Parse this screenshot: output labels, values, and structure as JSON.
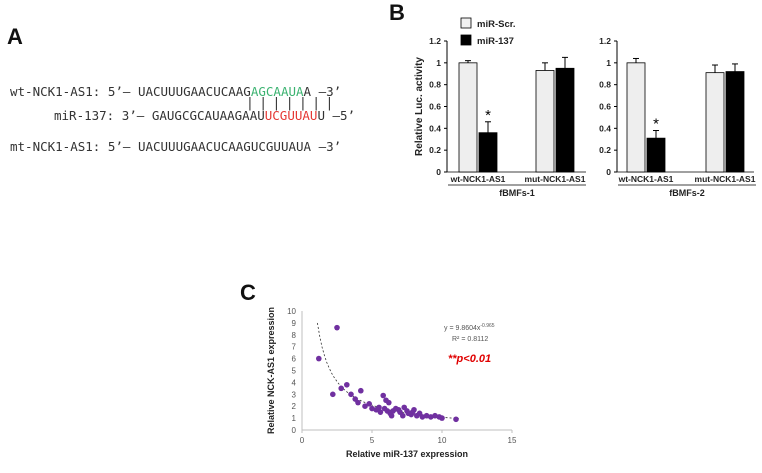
{
  "panels": {
    "a": "A",
    "b": "B",
    "c": "C"
  },
  "panel_a": {
    "wt": {
      "label": "wt-NCK1-AS1:",
      "five": "5’–",
      "seq_pre": "UACUUUGAACUCAAG",
      "seq_hl": "AGCAAUA",
      "seq_post": "A",
      "three": "–3’"
    },
    "pairing": "| | | | | | |",
    "mir": {
      "label": "miR-137:",
      "three": "3’–",
      "seq_pre": "GAUGCGCAUAAGAAU",
      "seq_hl": "UCGUUAU",
      "seq_post": "U",
      "five": "–5’"
    },
    "mt": {
      "label": "mt-NCK1-AS1:",
      "five": "5’–",
      "seq": "UACUUUGAACUCAAGUCGUUAUA",
      "three": "–3’"
    }
  },
  "legend": {
    "scr": "miR-Scr.",
    "mir": "miR-137"
  },
  "chart_data": [
    {
      "type": "bar",
      "title": "fBMFs-1",
      "ylabel": "Relative Luc. activity",
      "ylim": [
        0,
        1.2
      ],
      "yticks": [
        "0",
        "0.2",
        "0.4",
        "0.6",
        "0.8",
        "1",
        "1.2"
      ],
      "categories": [
        "wt-NCK1-AS1",
        "mut-NCK1-AS1"
      ],
      "series": [
        {
          "name": "miR-Scr.",
          "values": [
            1.0,
            0.93
          ],
          "errors": [
            0.02,
            0.07
          ],
          "color": "#eeeeee"
        },
        {
          "name": "miR-137",
          "values": [
            0.36,
            0.95
          ],
          "errors": [
            0.1,
            0.1
          ],
          "color": "#000000"
        }
      ],
      "significance": "*"
    },
    {
      "type": "bar",
      "title": "fBMFs-2",
      "ylabel": "",
      "ylim": [
        0,
        1.2
      ],
      "yticks": [
        "0",
        "0.2",
        "0.4",
        "0.6",
        "0.8",
        "1",
        "1.2"
      ],
      "categories": [
        "wt-NCK1-AS1",
        "mut-NCK1-AS1"
      ],
      "series": [
        {
          "name": "miR-Scr.",
          "values": [
            1.0,
            0.91
          ],
          "errors": [
            0.04,
            0.07
          ],
          "color": "#eeeeee"
        },
        {
          "name": "miR-137",
          "values": [
            0.31,
            0.92
          ],
          "errors": [
            0.07,
            0.07
          ],
          "color": "#000000"
        }
      ],
      "significance": "*"
    },
    {
      "type": "scatter",
      "xlabel": "Relative miR-137 expression",
      "ylabel": "Relative NCK-AS1 expression",
      "xlim": [
        0,
        15
      ],
      "ylim": [
        0,
        10
      ],
      "xticks": [
        "0",
        "5",
        "10",
        "15"
      ],
      "yticks": [
        "0",
        "1",
        "2",
        "3",
        "4",
        "5",
        "6",
        "7",
        "8",
        "9",
        "10"
      ],
      "color": "#7030a0",
      "points": [
        [
          1.2,
          6.0
        ],
        [
          2.5,
          8.6
        ],
        [
          2.2,
          3.0
        ],
        [
          2.8,
          3.5
        ],
        [
          3.2,
          3.8
        ],
        [
          3.5,
          3.0
        ],
        [
          3.8,
          2.6
        ],
        [
          4.0,
          2.3
        ],
        [
          4.2,
          3.3
        ],
        [
          4.5,
          2.0
        ],
        [
          4.8,
          2.2
        ],
        [
          5.0,
          1.8
        ],
        [
          5.3,
          1.7
        ],
        [
          5.5,
          1.9
        ],
        [
          5.6,
          1.5
        ],
        [
          5.8,
          2.9
        ],
        [
          6.0,
          2.5
        ],
        [
          6.1,
          1.6
        ],
        [
          6.2,
          2.3
        ],
        [
          6.3,
          1.4
        ],
        [
          6.5,
          1.6
        ],
        [
          6.7,
          1.8
        ],
        [
          6.9,
          1.7
        ],
        [
          7.0,
          1.5
        ],
        [
          7.2,
          1.2
        ],
        [
          7.3,
          1.9
        ],
        [
          7.5,
          1.6
        ],
        [
          7.6,
          1.4
        ],
        [
          7.8,
          1.3
        ],
        [
          8.0,
          1.7
        ],
        [
          8.2,
          1.2
        ],
        [
          8.4,
          1.4
        ],
        [
          8.6,
          1.1
        ],
        [
          8.9,
          1.2
        ],
        [
          9.2,
          1.1
        ],
        [
          9.5,
          1.2
        ],
        [
          10.0,
          1.0
        ],
        [
          11.0,
          0.9
        ],
        [
          6.4,
          1.2
        ],
        [
          5.9,
          1.8
        ],
        [
          7.9,
          1.5
        ],
        [
          9.8,
          1.1
        ]
      ],
      "fit": {
        "a": 9.8604,
        "b": -0.965,
        "equation": "y = 9.8604x",
        "exponent": "-0.965",
        "r2": "R² = 0.8112"
      },
      "annotation": "**p<0.01"
    }
  ]
}
